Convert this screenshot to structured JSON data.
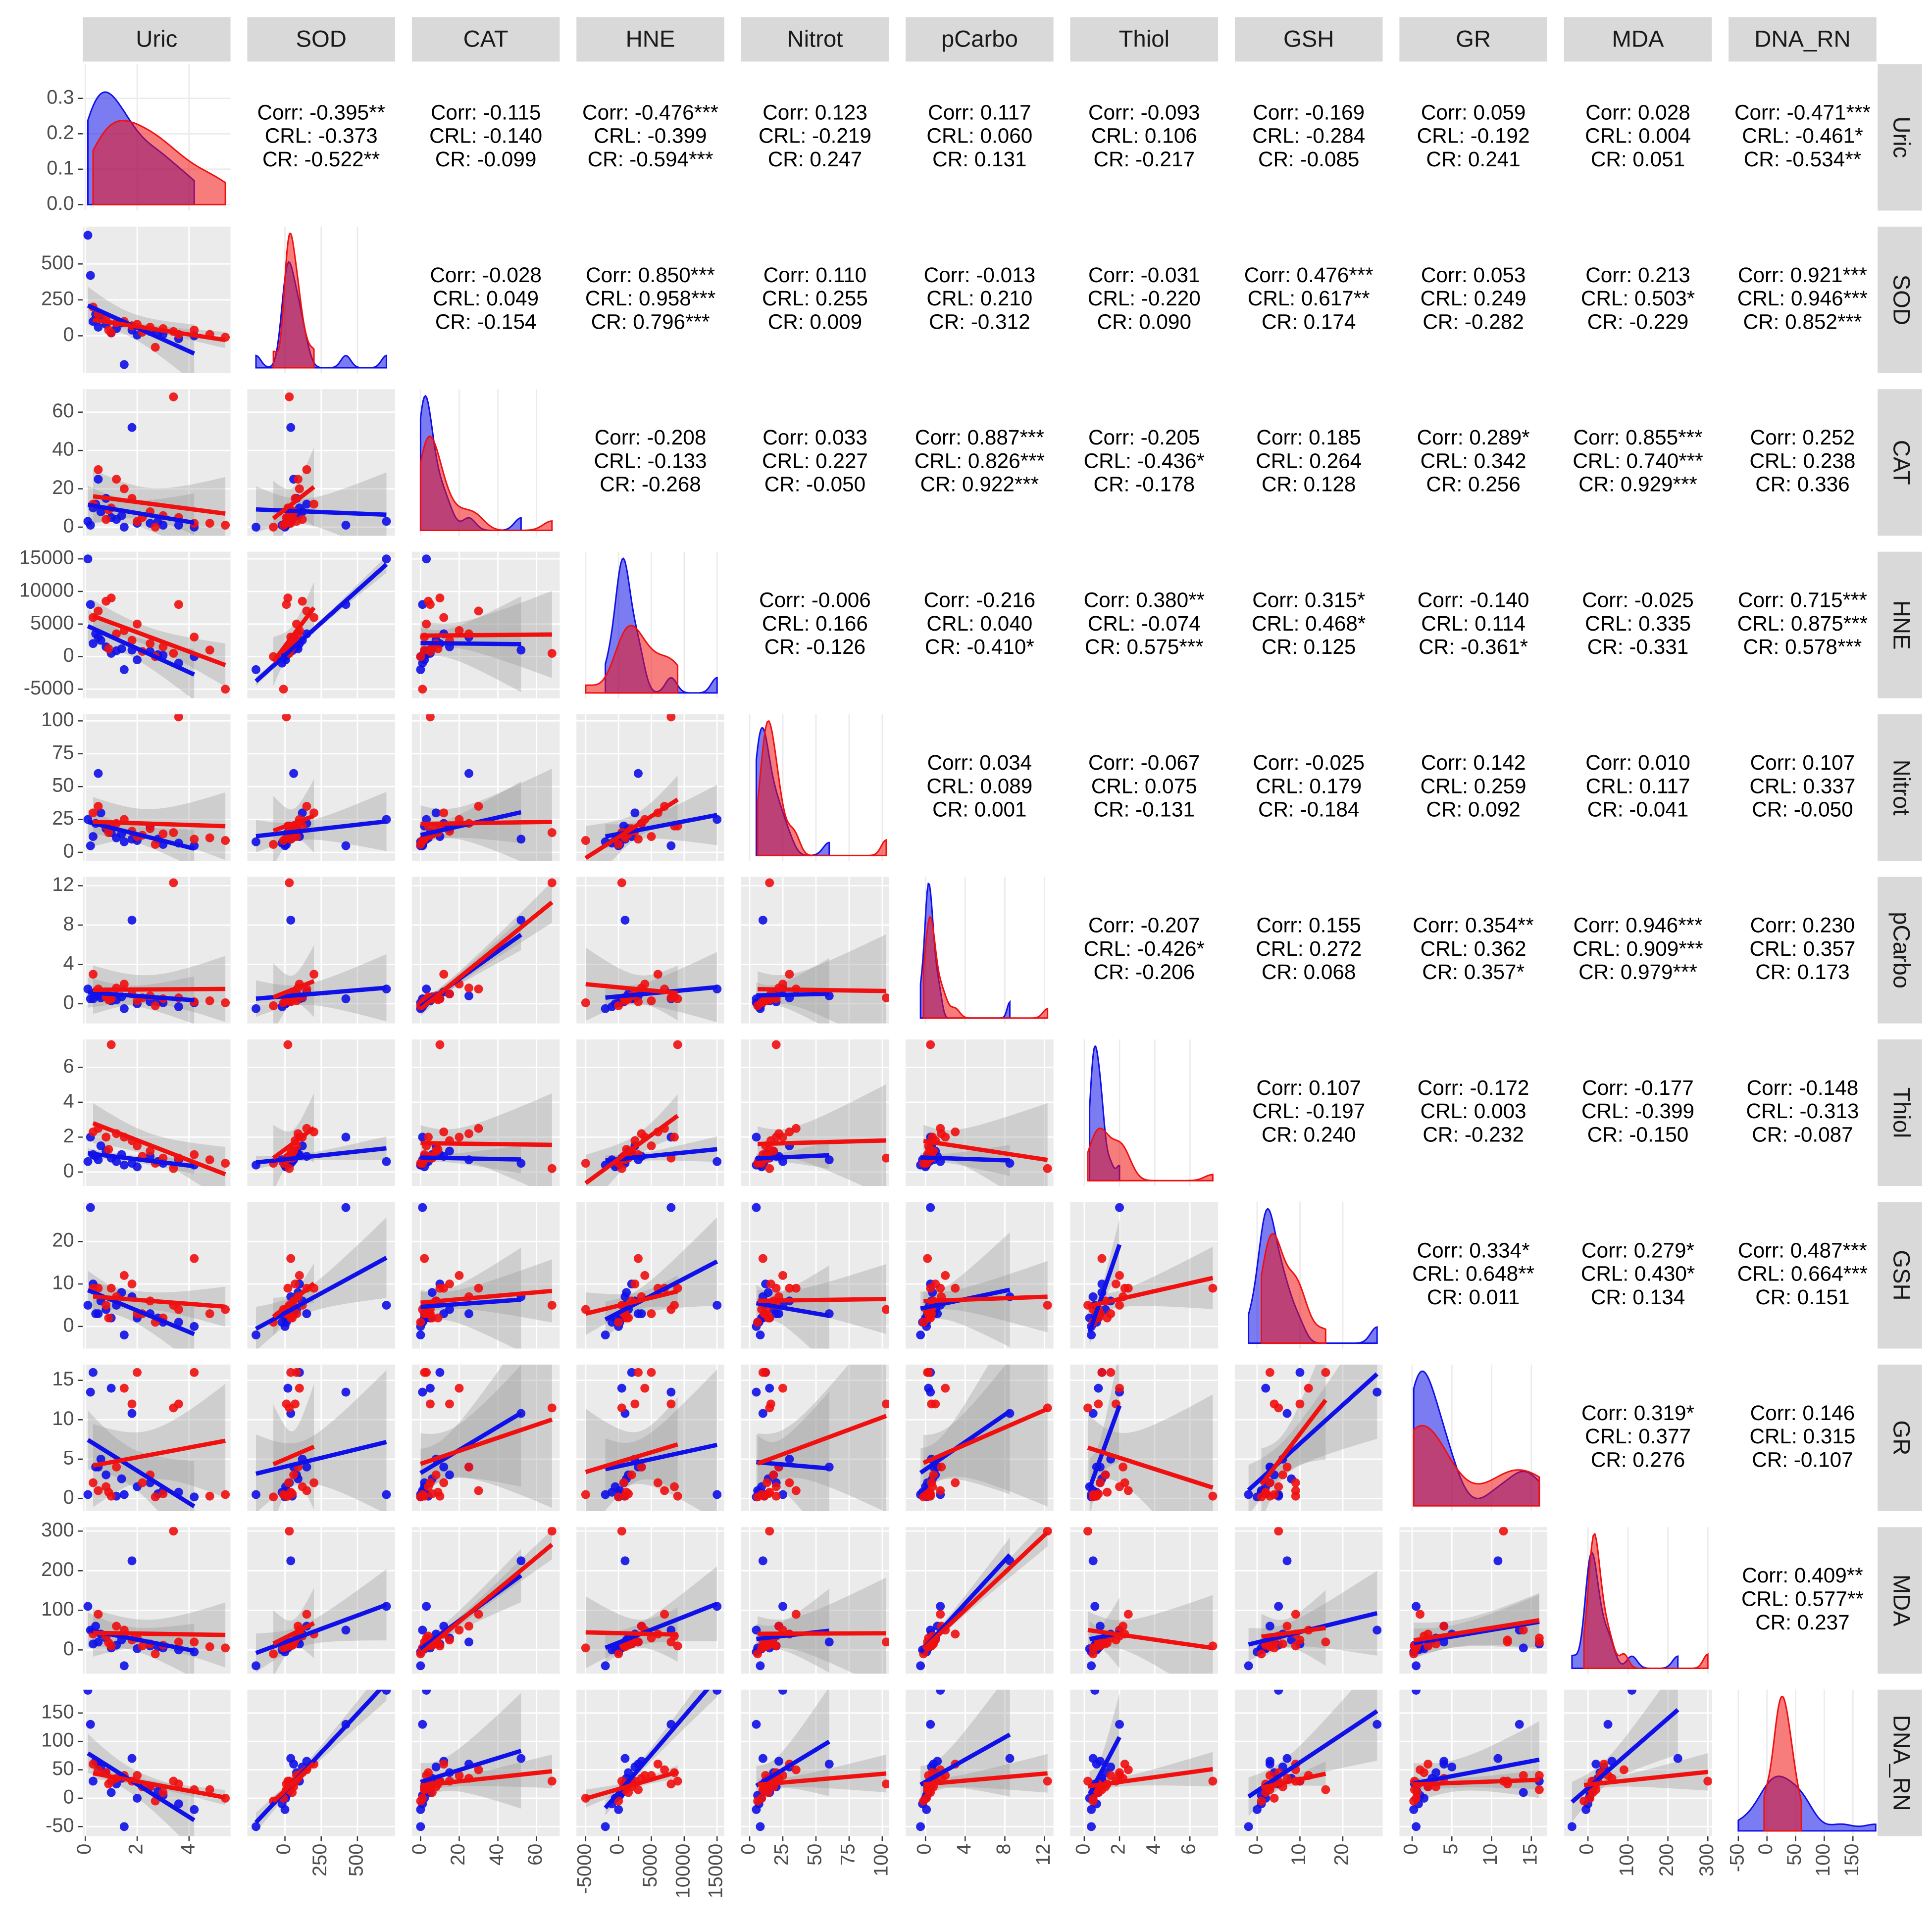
{
  "chart_data": {
    "type": "pairs",
    "variables": [
      {
        "name": "Uric",
        "lim": [
          -0.1,
          5.6
        ],
        "ticks": [
          0,
          2,
          4
        ]
      },
      {
        "name": "SOD",
        "lim": [
          -260,
          760
        ],
        "ticks": [
          0,
          250,
          500
        ]
      },
      {
        "name": "CAT",
        "lim": [
          -4.5,
          72
        ],
        "ticks": [
          0,
          20,
          40,
          60
        ]
      },
      {
        "name": "HNE",
        "lim": [
          -6400,
          16100
        ],
        "ticks": [
          -5000,
          0,
          5000,
          10000,
          15000
        ]
      },
      {
        "name": "Nitrot",
        "lim": [
          -6.5,
          105
        ],
        "ticks": [
          0,
          25,
          50,
          75,
          100
        ]
      },
      {
        "name": "pCarbo",
        "lim": [
          -2,
          12.9
        ],
        "ticks": [
          0,
          4,
          8,
          12
        ]
      },
      {
        "name": "Thiol",
        "lim": [
          -0.8,
          7.6
        ],
        "ticks": [
          0,
          2,
          4,
          6
        ]
      },
      {
        "name": "GSH",
        "lim": [
          -5.2,
          29.3
        ],
        "ticks": [
          0,
          10,
          20
        ]
      },
      {
        "name": "GR",
        "lim": [
          -1.6,
          17
        ],
        "ticks": [
          0,
          5,
          10,
          15
        ]
      },
      {
        "name": "MDA",
        "lim": [
          -60,
          310
        ],
        "ticks": [
          0,
          100,
          200,
          300
        ]
      },
      {
        "name": "DNA_RN",
        "lim": [
          -67,
          191
        ],
        "ticks": [
          -50,
          0,
          50,
          100,
          150
        ]
      }
    ],
    "density_lim": [
      -0.017,
      0.397
    ],
    "density_ticks": [
      {
        "value": 0,
        "label": "0.0"
      },
      0.1,
      0.2,
      0.3
    ],
    "groups": [
      {
        "color": "#1010e8",
        "observations": [
          [
            0.1,
            700,
            3,
            15000,
            25,
            1.5,
            0.6,
            5,
            0.5,
            110,
            190
          ],
          [
            0.2,
            420,
            1,
            8000,
            5,
            0.5,
            2.0,
            28,
            13.5,
            50,
            130
          ],
          [
            0.5,
            60,
            25,
            3000,
            60,
            0.8,
            0.7,
            3,
            4,
            20,
            60
          ],
          [
            1.8,
            40,
            52,
            1000,
            10,
            8.5,
            0.5,
            7,
            10.8,
            225,
            70
          ],
          [
            0.3,
            100,
            10,
            2000,
            12,
            0.5,
            1.0,
            10,
            16,
            15,
            30
          ],
          [
            1.0,
            20,
            5,
            500,
            15,
            0.3,
            0.8,
            2,
            14,
            5,
            10
          ],
          [
            1.5,
            -200,
            0,
            -2000,
            8,
            -0.5,
            0.4,
            -2,
            0.5,
            -40,
            -50
          ],
          [
            2.5,
            30,
            2,
            800,
            20,
            0.2,
            0.9,
            3,
            2,
            10,
            20
          ],
          [
            3.0,
            10,
            1,
            200,
            6,
            0.1,
            0.5,
            1,
            1,
            5,
            5
          ],
          [
            0.8,
            80,
            15,
            1500,
            18,
            1.0,
            1.2,
            4,
            3,
            30,
            45
          ],
          [
            1.2,
            50,
            4,
            900,
            11,
            0.4,
            0.6,
            5,
            0.3,
            12,
            25
          ],
          [
            2.0,
            5,
            2,
            -500,
            9,
            0.0,
            0.3,
            2,
            1.5,
            3,
            0
          ],
          [
            3.6,
            -20,
            1,
            -1000,
            7,
            -0.3,
            0.7,
            1,
            0.8,
            0,
            -10
          ],
          [
            0.6,
            120,
            8,
            2500,
            30,
            0.6,
            1.5,
            6,
            5,
            40,
            55
          ],
          [
            4.2,
            0,
            0,
            0,
            5,
            0.1,
            0.4,
            0,
            0.2,
            -5,
            -20
          ],
          [
            1.4,
            90,
            6,
            1200,
            14,
            0.7,
            1.0,
            8,
            2.5,
            25,
            35
          ],
          [
            2.8,
            15,
            3,
            300,
            10,
            0.2,
            0.6,
            2,
            0.6,
            8,
            12
          ],
          [
            0.4,
            150,
            12,
            3500,
            22,
            1.2,
            0.9,
            3,
            4,
            60,
            65
          ]
        ]
      },
      {
        "color": "#f01010",
        "observations": [
          [
            3.4,
            30,
            68,
            500,
            15,
            12.3,
            0.2,
            5,
            11.5,
            300,
            30
          ],
          [
            3.6,
            10,
            5,
            8000,
            103,
            0.6,
            0.8,
            4,
            12,
            20,
            25
          ],
          [
            1.0,
            20,
            10,
            9000,
            20,
            0.5,
            7.3,
            9,
            0.3,
            10,
            30
          ],
          [
            0.5,
            150,
            30,
            7000,
            35,
            1.5,
            2.5,
            9,
            1.0,
            90,
            50
          ],
          [
            2.0,
            80,
            3,
            5000,
            12,
            0.3,
            1.5,
            3,
            16,
            30,
            40
          ],
          [
            4.2,
            40,
            2,
            3000,
            10,
            0.2,
            1.0,
            16,
            16,
            20,
            15
          ],
          [
            1.5,
            100,
            20,
            4000,
            25,
            2.0,
            2.0,
            12,
            14,
            50,
            40
          ],
          [
            2.5,
            60,
            8,
            2000,
            18,
            0.8,
            1.2,
            6,
            3,
            15,
            20
          ],
          [
            0.3,
            200,
            12,
            6000,
            30,
            3.0,
            2.3,
            9,
            2,
            40,
            60
          ],
          [
            5.4,
            -10,
            1,
            -5000,
            9,
            0.1,
            0.5,
            4,
            0.5,
            5,
            0
          ],
          [
            3.0,
            50,
            6,
            1500,
            14,
            0.5,
            0.8,
            2,
            0.6,
            12,
            10
          ],
          [
            1.8,
            70,
            15,
            2500,
            16,
            1.0,
            1.8,
            10,
            12,
            25,
            30
          ],
          [
            0.8,
            120,
            4,
            8500,
            20,
            0.7,
            2.0,
            5,
            1.5,
            35,
            45
          ],
          [
            2.7,
            -80,
            0,
            0,
            6,
            -0.2,
            0.5,
            1,
            0.2,
            -10,
            -5
          ],
          [
            4.8,
            10,
            2,
            1000,
            11,
            0.3,
            0.7,
            3,
            0.3,
            8,
            15
          ],
          [
            1.2,
            90,
            25,
            3500,
            22,
            1.6,
            2.2,
            7,
            4,
            60,
            35
          ],
          [
            0.9,
            40,
            9,
            1200,
            15,
            0.4,
            1.3,
            2,
            0.8,
            18,
            25
          ],
          [
            2.2,
            25,
            5,
            800,
            13,
            0.6,
            0.9,
            3,
            2,
            10,
            20
          ]
        ]
      }
    ],
    "correlations": [
      [
        [
          "Corr: -0.395**",
          "CRL: -0.373",
          "CR: -0.522**"
        ],
        [
          "Corr: -0.115",
          "CRL: -0.140",
          "CR: -0.099"
        ],
        [
          "Corr: -0.476***",
          "CRL: -0.399",
          "CR: -0.594***"
        ],
        [
          "Corr: 0.123",
          "CRL: -0.219",
          "CR: 0.247"
        ],
        [
          "Corr: 0.117",
          "CRL: 0.060",
          "CR: 0.131"
        ],
        [
          "Corr: -0.093",
          "CRL: 0.106",
          "CR: -0.217"
        ],
        [
          "Corr: -0.169",
          "CRL: -0.284",
          "CR: -0.085"
        ],
        [
          "Corr: 0.059",
          "CRL: -0.192",
          "CR: 0.241"
        ],
        [
          "Corr: 0.028",
          "CRL: 0.004",
          "CR: 0.051"
        ],
        [
          "Corr: -0.471***",
          "CRL: -0.461*",
          "CR: -0.534**"
        ]
      ],
      [
        [
          "Corr: -0.028",
          "CRL: 0.049",
          "CR: -0.154"
        ],
        [
          "Corr: 0.850***",
          "CRL: 0.958***",
          "CR: 0.796***"
        ],
        [
          "Corr: 0.110",
          "CRL: 0.255",
          "CR: 0.009"
        ],
        [
          "Corr: -0.013",
          "CRL: 0.210",
          "CR: -0.312"
        ],
        [
          "Corr: -0.031",
          "CRL: -0.220",
          "CR: 0.090"
        ],
        [
          "Corr: 0.476***",
          "CRL: 0.617**",
          "CR: 0.174"
        ],
        [
          "Corr: 0.053",
          "CRL: 0.249",
          "CR: -0.282"
        ],
        [
          "Corr: 0.213",
          "CRL: 0.503*",
          "CR: -0.229"
        ],
        [
          "Corr: 0.921***",
          "CRL: 0.946***",
          "CR: 0.852***"
        ]
      ],
      [
        [
          "Corr: -0.208",
          "CRL: -0.133",
          "CR: -0.268"
        ],
        [
          "Corr: 0.033",
          "CRL: 0.227",
          "CR: -0.050"
        ],
        [
          "Corr: 0.887***",
          "CRL: 0.826***",
          "CR: 0.922***"
        ],
        [
          "Corr: -0.205",
          "CRL: -0.436*",
          "CR: -0.178"
        ],
        [
          "Corr: 0.185",
          "CRL: 0.264",
          "CR: 0.128"
        ],
        [
          "Corr: 0.289*",
          "CRL: 0.342",
          "CR: 0.256"
        ],
        [
          "Corr: 0.855***",
          "CRL: 0.740***",
          "CR: 0.929***"
        ],
        [
          "Corr: 0.252",
          "CRL: 0.238",
          "CR: 0.336"
        ]
      ],
      [
        [
          "Corr: -0.006",
          "CRL: 0.166",
          "CR: -0.126"
        ],
        [
          "Corr: -0.216",
          "CRL: 0.040",
          "CR: -0.410*"
        ],
        [
          "Corr: 0.380**",
          "CRL: -0.074",
          "CR: 0.575***"
        ],
        [
          "Corr: 0.315*",
          "CRL: 0.468*",
          "CR: 0.125"
        ],
        [
          "Corr: -0.140",
          "CRL: 0.114",
          "CR: -0.361*"
        ],
        [
          "Corr: -0.025",
          "CRL: 0.335",
          "CR: -0.331"
        ],
        [
          "Corr: 0.715***",
          "CRL: 0.875***",
          "CR: 0.578***"
        ]
      ],
      [
        [
          "Corr: 0.034",
          "CRL: 0.089",
          "CR: 0.001"
        ],
        [
          "Corr: -0.067",
          "CRL: 0.075",
          "CR: -0.131"
        ],
        [
          "Corr: -0.025",
          "CRL: 0.179",
          "CR: -0.184"
        ],
        [
          "Corr: 0.142",
          "CRL: 0.259",
          "CR: 0.092"
        ],
        [
          "Corr: 0.010",
          "CRL: 0.117",
          "CR: -0.041"
        ],
        [
          "Corr: 0.107",
          "CRL: 0.337",
          "CR: -0.050"
        ]
      ],
      [
        [
          "Corr: -0.207",
          "CRL: -0.426*",
          "CR: -0.206"
        ],
        [
          "Corr: 0.155",
          "CRL: 0.272",
          "CR: 0.068"
        ],
        [
          "Corr: 0.354**",
          "CRL: 0.362",
          "CR: 0.357*"
        ],
        [
          "Corr: 0.946***",
          "CRL: 0.909***",
          "CR: 0.979***"
        ],
        [
          "Corr: 0.230",
          "CRL: 0.357",
          "CR: 0.173"
        ]
      ],
      [
        [
          "Corr: 0.107",
          "CRL: -0.197",
          "CR: 0.240"
        ],
        [
          "Corr: -0.172",
          "CRL: 0.003",
          "CR: -0.232"
        ],
        [
          "Corr: -0.177",
          "CRL: -0.399",
          "CR: -0.150"
        ],
        [
          "Corr: -0.148",
          "CRL: -0.313",
          "CR: -0.087"
        ]
      ],
      [
        [
          "Corr: 0.334*",
          "CRL: 0.648**",
          "CR: 0.011"
        ],
        [
          "Corr: 0.279*",
          "CRL: 0.430*",
          "CR: 0.134"
        ],
        [
          "Corr: 0.487***",
          "CRL: 0.664***",
          "CR: 0.151"
        ]
      ],
      [
        [
          "Corr: 0.319*",
          "CRL: 0.377",
          "CR: 0.276"
        ],
        [
          "Corr: 0.146",
          "CRL: 0.315",
          "CR: -0.107"
        ]
      ],
      [
        [
          "Corr: 0.409**",
          "CRL: 0.577**",
          "CR: 0.237"
        ]
      ]
    ]
  }
}
